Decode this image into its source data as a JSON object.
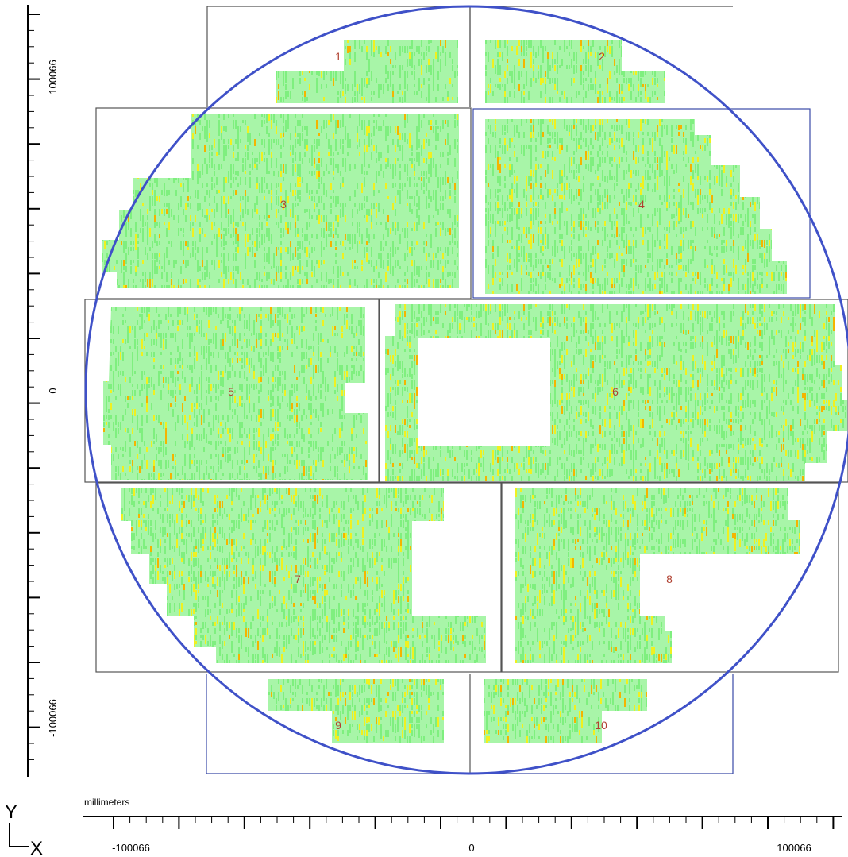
{
  "units_label": "millimeters",
  "axis_letters": {
    "y": "Y",
    "x": "X"
  },
  "y_axis": {
    "top": "100066",
    "middle": "0",
    "bottom": "-100066"
  },
  "x_axis": {
    "left": "-100066",
    "middle": "0",
    "right": "100066"
  },
  "fields": [
    {
      "id": "1",
      "label": "1"
    },
    {
      "id": "2",
      "label": "2"
    },
    {
      "id": "3",
      "label": "3"
    },
    {
      "id": "4",
      "label": "4"
    },
    {
      "id": "5",
      "label": "5"
    },
    {
      "id": "6",
      "label": "6"
    },
    {
      "id": "7",
      "label": "7"
    },
    {
      "id": "8",
      "label": "8"
    },
    {
      "id": "9",
      "label": "9"
    },
    {
      "id": "10",
      "label": "10"
    }
  ],
  "colors": {
    "wafer_outline": "#3f51c8",
    "field_border": "#555555",
    "field_border_blue": "#3a4aa8",
    "map_base": "#a8f5a8",
    "map_mid": "#7fef7f",
    "map_high": "#f0f020",
    "map_peak": "#f4b400",
    "map_hot": "#d01818",
    "label_color": "#b04030",
    "axis_color": "#000000"
  }
}
